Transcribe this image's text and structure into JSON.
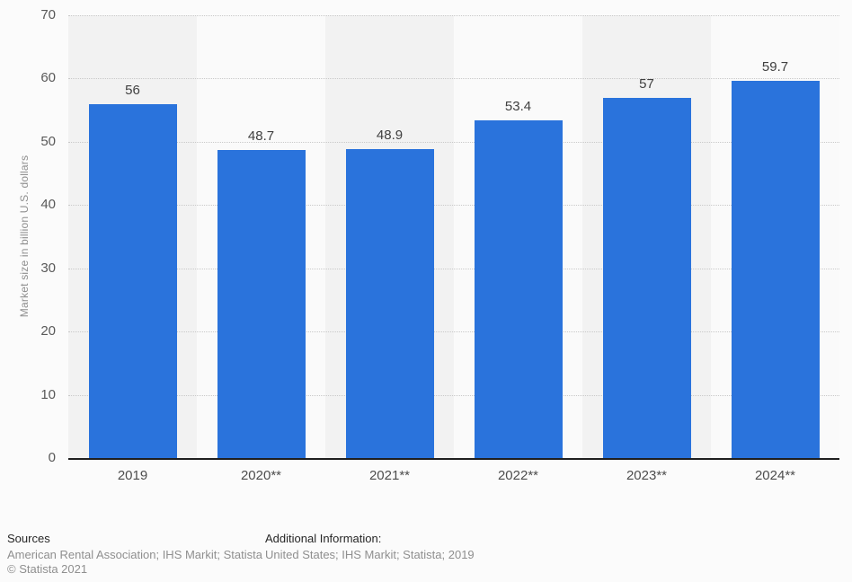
{
  "chart_data": {
    "type": "bar",
    "title": "",
    "categories": [
      "2019",
      "2020**",
      "2021**",
      "2022**",
      "2023**",
      "2024**"
    ],
    "values": [
      56,
      48.7,
      48.9,
      53.4,
      57,
      59.7
    ],
    "value_labels": [
      "56",
      "48.7",
      "48.9",
      "53.4",
      "57",
      "59.7"
    ],
    "xlabel": "",
    "ylabel": "Market size in billion U.S. dollars",
    "ylim": [
      0,
      70
    ],
    "yticks": [
      0,
      10,
      20,
      30,
      40,
      50,
      60,
      70
    ],
    "grid": "horizontal-dotted",
    "legend": "none",
    "bar_color": "#2a73dc",
    "stripe_colors": [
      "#f2f2f2",
      "#fafafa"
    ],
    "gridline_color": "#c9c9c9",
    "axis_line_color": "#1f1f1f"
  },
  "footer": {
    "sources_title": "Sources",
    "sources_text": "American Rental Association; IHS Markit; Statista",
    "copyright": "© Statista 2021",
    "additional_title": "Additional Information:",
    "additional_text": "United States; IHS Markit; Statista; 2019"
  }
}
